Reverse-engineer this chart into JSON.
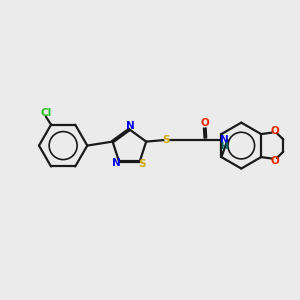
{
  "background_color": "#ebebeb",
  "bond_color": "#1a1a1a",
  "atom_colors": {
    "Cl": "#22bb22",
    "N": "#0000ee",
    "S": "#ccaa00",
    "O": "#ee2200",
    "NH": "#006666"
  },
  "figsize": [
    3.0,
    3.0
  ],
  "dpi": 100
}
